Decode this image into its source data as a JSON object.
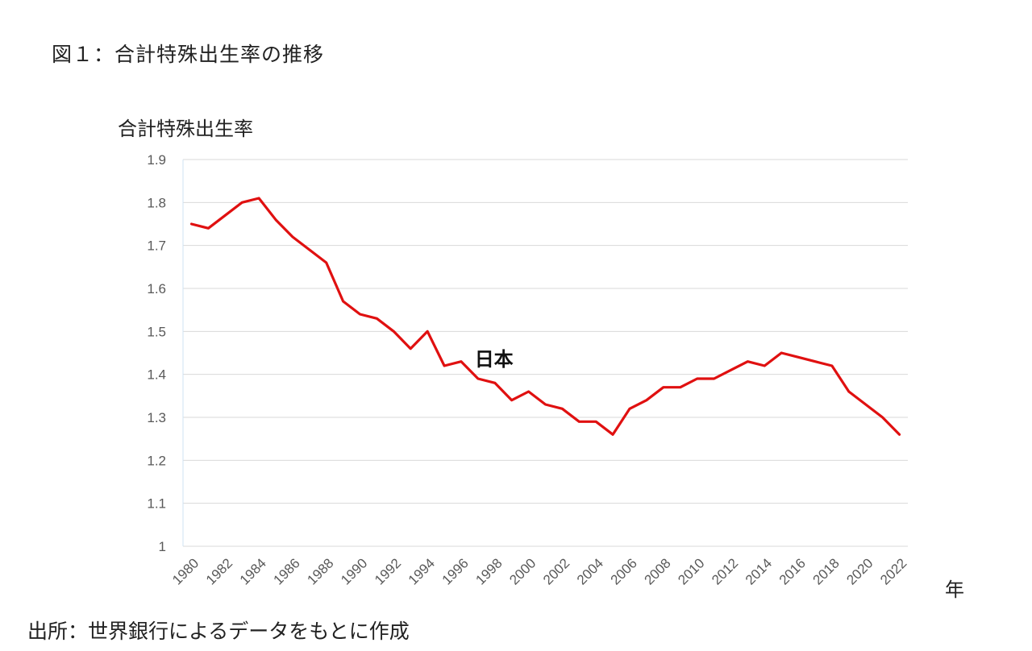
{
  "figure_title": "図１：合計特殊出生率の推移",
  "source_note": "出所：世界銀行によるデータをもとに作成",
  "chart_data": {
    "type": "line",
    "title": "",
    "ylabel": "合計特殊出生率",
    "xlabel": "年",
    "ylim": [
      1,
      1.9
    ],
    "yticks": [
      "1",
      "1.1",
      "1.2",
      "1.3",
      "1.4",
      "1.5",
      "1.6",
      "1.7",
      "1.8",
      "1.9"
    ],
    "xticks": [
      "1980",
      "1982",
      "1984",
      "1986",
      "1988",
      "1990",
      "1992",
      "1994",
      "1996",
      "1998",
      "2000",
      "2002",
      "2004",
      "2006",
      "2008",
      "2010",
      "2012",
      "2014",
      "2016",
      "2018",
      "2020",
      "2022"
    ],
    "grid": true,
    "series": [
      {
        "name": "日本",
        "color": "#e01010",
        "x": [
          1980,
          1981,
          1982,
          1983,
          1984,
          1985,
          1986,
          1987,
          1988,
          1989,
          1990,
          1991,
          1992,
          1993,
          1994,
          1995,
          1996,
          1997,
          1998,
          1999,
          2000,
          2001,
          2002,
          2003,
          2004,
          2005,
          2006,
          2007,
          2008,
          2009,
          2010,
          2011,
          2012,
          2013,
          2014,
          2015,
          2016,
          2017,
          2018,
          2019,
          2020,
          2021,
          2022
        ],
        "values": [
          1.75,
          1.74,
          1.77,
          1.8,
          1.81,
          1.76,
          1.72,
          1.69,
          1.66,
          1.57,
          1.54,
          1.53,
          1.5,
          1.46,
          1.5,
          1.42,
          1.43,
          1.39,
          1.38,
          1.34,
          1.36,
          1.33,
          1.32,
          1.29,
          1.29,
          1.26,
          1.32,
          1.34,
          1.37,
          1.37,
          1.39,
          1.39,
          1.41,
          1.43,
          1.42,
          1.45,
          1.44,
          1.43,
          1.42,
          1.36,
          1.33,
          1.3,
          1.26
        ]
      }
    ]
  }
}
